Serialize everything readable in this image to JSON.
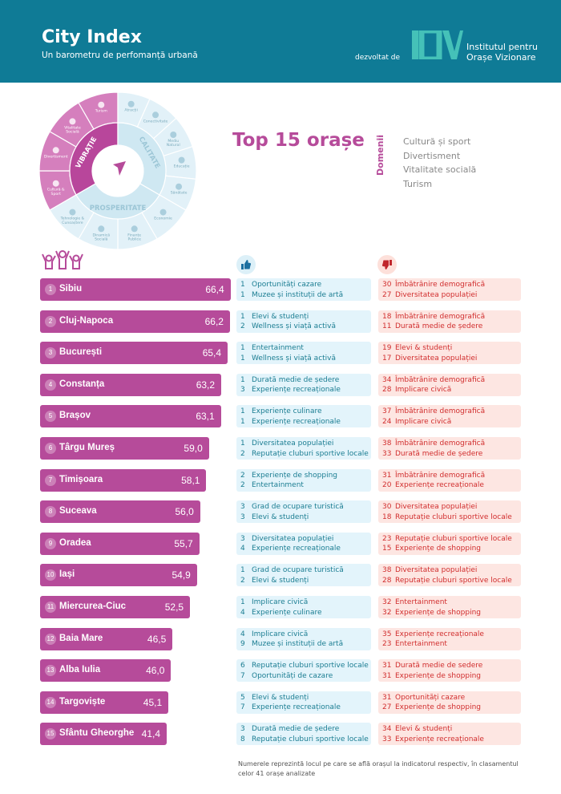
{
  "header": {
    "title": "City Index",
    "subtitle": "Un barometru de perfomanță urbană",
    "developed_by": "dezvoltat de",
    "institute_line1": "Institutul pentru",
    "institute_line2": "Orașe Vizionare",
    "logo_text": "IOV"
  },
  "colors": {
    "header_bg": "#0f7b96",
    "accent": "#b64b9a",
    "positive": "#1b7d92",
    "negative": "#d12e2e"
  },
  "wheel": {
    "sectors": [
      {
        "name": "VIBRAȚIE",
        "items": [
          "Cultură & Sport",
          "Divertisment",
          "Vitalitate Socială",
          "Turism"
        ]
      },
      {
        "name": "CALITATE",
        "items": [
          "Atracții",
          "Conectivitate",
          "Mediu Natural",
          "Educație",
          "Sănătate"
        ]
      },
      {
        "name": "PROSPERITATE",
        "items": [
          "Economie",
          "Finanțe Publice",
          "Dinamică Socială",
          "Tehnologie & Cunoaștere"
        ]
      }
    ]
  },
  "heading": "Top 15 orașe",
  "domains": {
    "label": "Domenii",
    "items": [
      "Cultură și sport",
      "Divertisment",
      "Vitalitate socială",
      "Turism"
    ]
  },
  "icons": {
    "people": "people-cheering-icon",
    "positive": "thumbs-up-icon",
    "negative": "thumbs-down-icon"
  },
  "cities": [
    {
      "rank": "1",
      "name": "Sibiu",
      "score": "66,4",
      "value": 66.4,
      "pos": [
        [
          "1",
          "Oportunități cazare"
        ],
        [
          "1",
          "Muzee și instituții de artă"
        ]
      ],
      "neg": [
        [
          "30",
          "Îmbătrânire demografică"
        ],
        [
          "27",
          "Diversitatea populației"
        ]
      ]
    },
    {
      "rank": "2",
      "name": "Cluj-Napoca",
      "score": "66,2",
      "value": 66.2,
      "pos": [
        [
          "1",
          "Elevi & studenți"
        ],
        [
          "2",
          "Wellness și viață activă"
        ]
      ],
      "neg": [
        [
          "18",
          "Îmbătrânire demografică"
        ],
        [
          "11",
          "Durată medie de ședere"
        ]
      ]
    },
    {
      "rank": "3",
      "name": "București",
      "score": "65,4",
      "value": 65.4,
      "pos": [
        [
          "1",
          "Entertainment"
        ],
        [
          "1",
          "Wellness și viață activă"
        ]
      ],
      "neg": [
        [
          "19",
          "Elevi & studenți"
        ],
        [
          "17",
          "Diversitatea populației"
        ]
      ]
    },
    {
      "rank": "4",
      "name": "Constanța",
      "score": "63,2",
      "value": 63.2,
      "pos": [
        [
          "1",
          "Durată medie de ședere"
        ],
        [
          "3",
          "Experiențe recreaționale"
        ]
      ],
      "neg": [
        [
          "34",
          "Îmbătrânire demografică"
        ],
        [
          "28",
          "Implicare civică"
        ]
      ]
    },
    {
      "rank": "5",
      "name": "Brașov",
      "score": "63,1",
      "value": 63.1,
      "pos": [
        [
          "1",
          "Experiențe culinare"
        ],
        [
          "1",
          "Experiențe recreaționale"
        ]
      ],
      "neg": [
        [
          "37",
          "Îmbătrânire demografică"
        ],
        [
          "24",
          "Implicare civică"
        ]
      ]
    },
    {
      "rank": "6",
      "name": "Târgu Mureș",
      "score": "59,0",
      "value": 59.0,
      "pos": [
        [
          "1",
          "Diversitatea populației"
        ],
        [
          "2",
          "Reputație cluburi sportive locale"
        ]
      ],
      "neg": [
        [
          "38",
          "Îmbătrânire demografică"
        ],
        [
          "33",
          "Durată medie de ședere"
        ]
      ]
    },
    {
      "rank": "7",
      "name": "Timișoara",
      "score": "58,1",
      "value": 58.1,
      "pos": [
        [
          "2",
          "Experiențe de shopping"
        ],
        [
          "2",
          "Entertainment"
        ]
      ],
      "neg": [
        [
          "31",
          "Îmbătrânire demografică"
        ],
        [
          "20",
          "Experiențe recreaționale"
        ]
      ]
    },
    {
      "rank": "8",
      "name": "Suceava",
      "score": "56,0",
      "value": 56.0,
      "pos": [
        [
          "3",
          "Grad de ocupare turistică"
        ],
        [
          "3",
          "Elevi & studenți"
        ]
      ],
      "neg": [
        [
          "30",
          "Diversitatea populației"
        ],
        [
          "18",
          "Reputație cluburi sportive locale"
        ]
      ]
    },
    {
      "rank": "9",
      "name": "Oradea",
      "score": "55,7",
      "value": 55.7,
      "pos": [
        [
          "3",
          "Diversitatea populației"
        ],
        [
          "4",
          "Experiențe recreaționale"
        ]
      ],
      "neg": [
        [
          "23",
          "Reputație cluburi sportive locale"
        ],
        [
          "15",
          "Experiențe de shopping"
        ]
      ]
    },
    {
      "rank": "10",
      "name": "Iași",
      "score": "54,9",
      "value": 54.9,
      "pos": [
        [
          "1",
          "Grad de ocupare turistică"
        ],
        [
          "2",
          "Elevi & studenți"
        ]
      ],
      "neg": [
        [
          "38",
          "Diversitatea populației"
        ],
        [
          "28",
          "Reputație cluburi sportive locale"
        ]
      ]
    },
    {
      "rank": "11",
      "name": "Miercurea-Ciuc",
      "score": "52,5",
      "value": 52.5,
      "pos": [
        [
          "1",
          "Implicare civică"
        ],
        [
          "4",
          "Experiențe culinare"
        ]
      ],
      "neg": [
        [
          "32",
          "Entertainment"
        ],
        [
          "32",
          "Experiențe de shopping"
        ]
      ]
    },
    {
      "rank": "12",
      "name": "Baia Mare",
      "score": "46,5",
      "value": 46.5,
      "pos": [
        [
          "4",
          "Implicare civică"
        ],
        [
          "9",
          "Muzee și instituții de artă"
        ]
      ],
      "neg": [
        [
          "35",
          "Experiențe recreaționale"
        ],
        [
          "23",
          "Entertainment"
        ]
      ]
    },
    {
      "rank": "13",
      "name": "Alba Iulia",
      "score": "46,0",
      "value": 46.0,
      "pos": [
        [
          "6",
          "Reputație cluburi sportive locale"
        ],
        [
          "7",
          "Oportunități de cazare"
        ]
      ],
      "neg": [
        [
          "31",
          "Durată medie de sedere"
        ],
        [
          "31",
          "Experiențe de shopping"
        ]
      ]
    },
    {
      "rank": "14",
      "name": "Targoviște",
      "score": "45,1",
      "value": 45.1,
      "pos": [
        [
          "5",
          "Elevi & studenți"
        ],
        [
          "7",
          "Experiențe recreaționale"
        ]
      ],
      "neg": [
        [
          "31",
          "Oportunități cazare"
        ],
        [
          "27",
          "Experiențe de shopping"
        ]
      ]
    },
    {
      "rank": "15",
      "name": "Sfântu Gheorghe",
      "score": "41,4",
      "value": 41.4,
      "pos": [
        [
          "3",
          "Durată medie de ședere"
        ],
        [
          "8",
          "Reputație cluburi sportive locale"
        ]
      ],
      "neg": [
        [
          "34",
          "Elevi & studenți"
        ],
        [
          "33",
          "Experiențe recreaționale"
        ]
      ]
    }
  ],
  "footnote": "Numerele reprezintă locul pe care se află orașul la indicatorul respectiv, în clasamentul celor 41 orașe analizate"
}
